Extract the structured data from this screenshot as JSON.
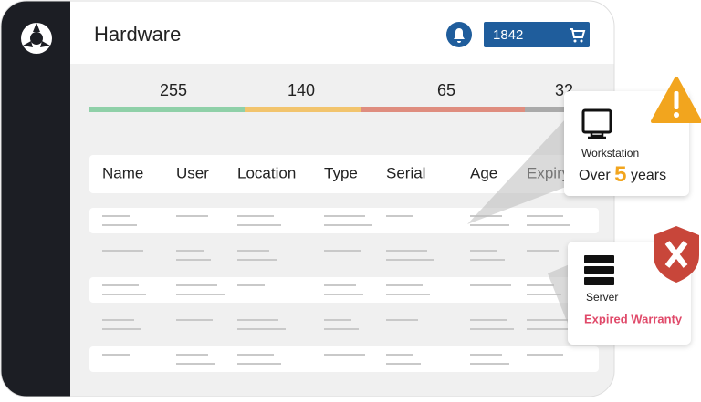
{
  "header": {
    "title": "Hardware",
    "cart_count": 1842
  },
  "stats": [
    255,
    140,
    65,
    32
  ],
  "table": {
    "columns": [
      "Name",
      "User",
      "Location",
      "Type",
      "Serial",
      "Age",
      "Expiry"
    ]
  },
  "callouts": [
    {
      "label": "Workstation",
      "prefix": "Over",
      "number": 5,
      "suffix": "years"
    },
    {
      "label": "Server",
      "status": "Expired Warranty"
    }
  ]
}
